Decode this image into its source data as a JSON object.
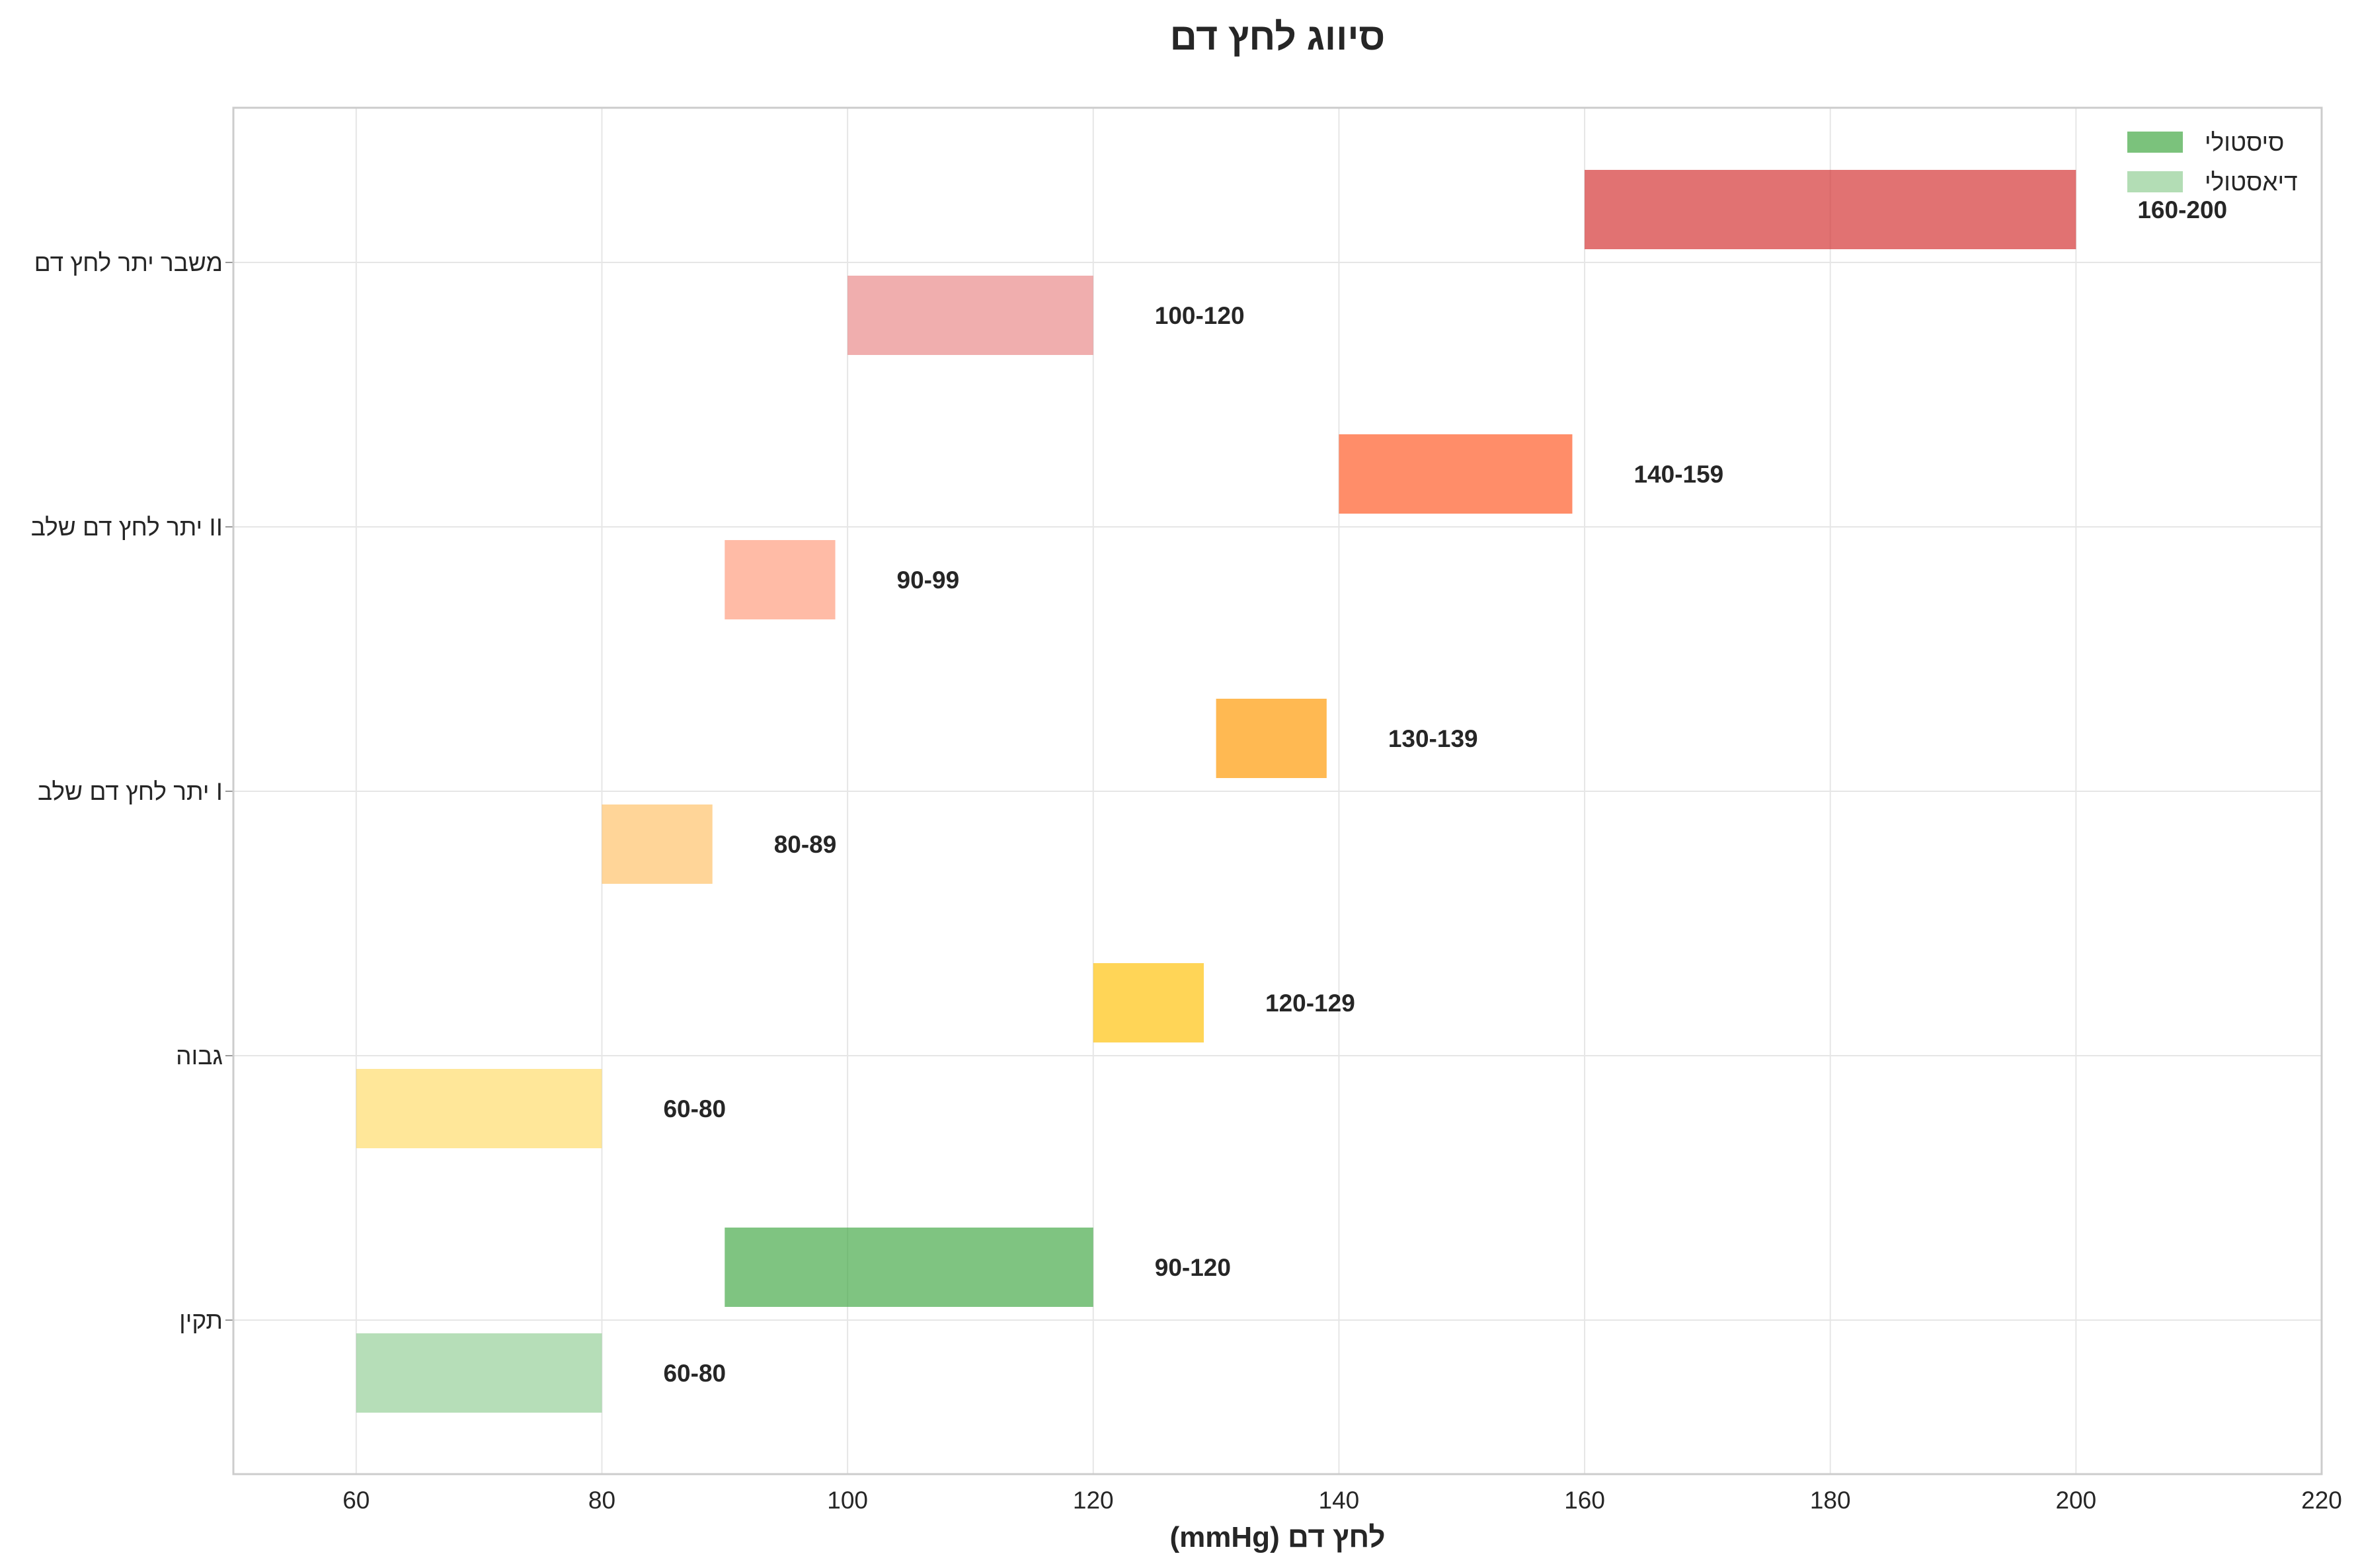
{
  "chart_data": {
    "type": "bar",
    "orientation": "horizontal",
    "title": "סיווג לחץ דם",
    "xlabel": "לחץ דם (mmHg)",
    "ylabel": "",
    "xlim": [
      50,
      220
    ],
    "xticks": [
      60,
      80,
      100,
      120,
      140,
      160,
      180,
      200,
      220
    ],
    "grid": true,
    "legend_position": "top-right",
    "categories": [
      "תקין",
      "גבוה",
      "יתר לחץ דם שלב I",
      "יתר לחץ דם שלב II",
      "משבר יתר לחץ דם"
    ],
    "series": [
      {
        "name": "סיסטולי",
        "legend_color": "#43a845",
        "ranges": [
          [
            90,
            120
          ],
          [
            120,
            129
          ],
          [
            130,
            139
          ],
          [
            140,
            159
          ],
          [
            160,
            200
          ]
        ],
        "labels": [
          "90-120",
          "120-129",
          "130-139",
          "140-159",
          "160-200"
        ],
        "colors": [
          "#43a845",
          "#ffc107",
          "#ff9800",
          "#ff5722",
          "#d32f2f"
        ]
      },
      {
        "name": "דיאסטולי",
        "legend_color": "#81c784",
        "ranges": [
          [
            60,
            80
          ],
          [
            60,
            80
          ],
          [
            80,
            89
          ],
          [
            90,
            99
          ],
          [
            100,
            120
          ]
        ],
        "labels": [
          "60-80",
          "60-80",
          "80-89",
          "90-99",
          "100-120"
        ],
        "colors": [
          "#81c784",
          "#ffd54f",
          "#ffb74d",
          "#ff8a65",
          "#e57373"
        ]
      }
    ]
  }
}
